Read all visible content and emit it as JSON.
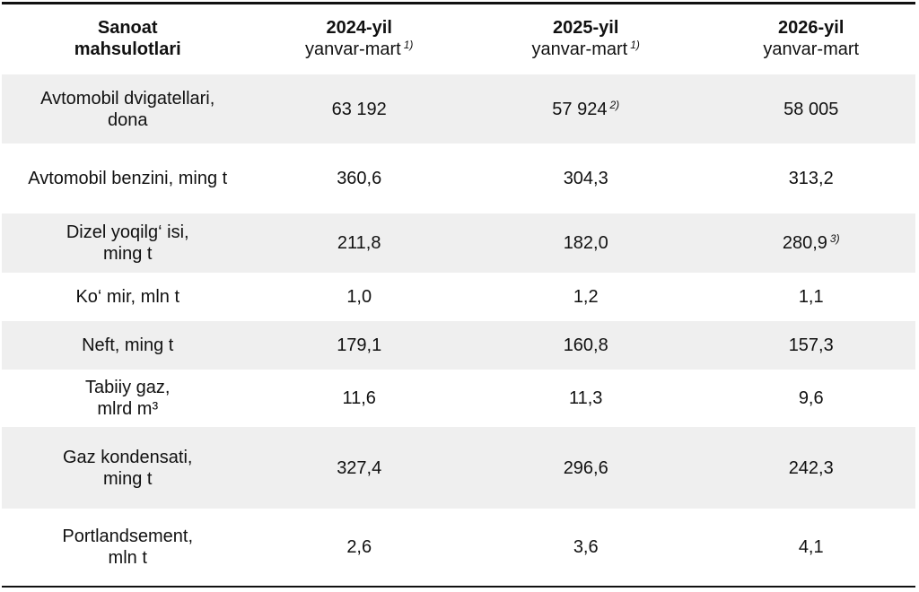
{
  "header": {
    "col0": [
      "Sanoat",
      "mahsulotlari"
    ],
    "col1": {
      "year": "2024-yil",
      "period": "yanvar-mart",
      "note": "1)"
    },
    "col2": {
      "year": "2025-yil",
      "period": "yanvar-mart",
      "note": "1)"
    },
    "col3": {
      "year": "2026-yil",
      "period": "yanvar-mart"
    }
  },
  "rows": [
    {
      "product": [
        "Avtomobil dvigatellari,",
        "dona"
      ],
      "v2024": "63 192",
      "v2025": "57 924",
      "v2025_note": "2)",
      "v2026": "58 005"
    },
    {
      "product": [
        "Avtomobil benzini, ming t"
      ],
      "v2024": "360,6",
      "v2025": "304,3",
      "v2026": "313,2"
    },
    {
      "product": [
        "Dizel yoqilg‘ isi,",
        "ming t"
      ],
      "v2024": "211,8",
      "v2025": "182,0",
      "v2026": "280,9",
      "v2026_note": "3)"
    },
    {
      "product": [
        "Ko‘ mir, mln t"
      ],
      "v2024": "1,0",
      "v2025": "1,2",
      "v2026": "1,1"
    },
    {
      "product": [
        "Neft, ming t"
      ],
      "v2024": "179,1",
      "v2025": "160,8",
      "v2026": "157,3"
    },
    {
      "product": [
        "Tabiiy gaz,",
        "mlrd m³"
      ],
      "v2024": "11,6",
      "v2025": "11,3",
      "v2026": "9,6"
    },
    {
      "product": [
        "Gaz kondensati,",
        "ming t"
      ],
      "v2024": "327,4",
      "v2025": "296,6",
      "v2026": "242,3"
    },
    {
      "product": [
        "Portlandsement,",
        "mln t"
      ],
      "v2024": "2,6",
      "v2025": "3,6",
      "v2026": "4,1"
    }
  ]
}
